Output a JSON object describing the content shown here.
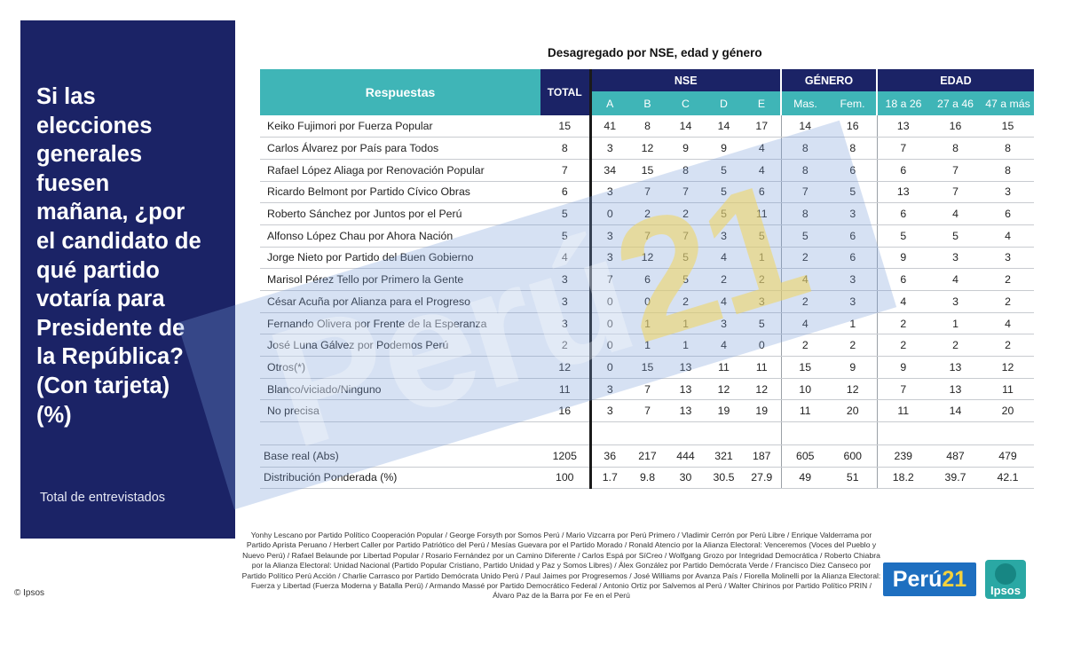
{
  "sidebar": {
    "question_lines": [
      "Si las",
      "elecciones",
      "generales",
      "fuesen",
      "mañana, ¿por",
      "el candidato de",
      "qué partido",
      "votaría para",
      "Presidente de",
      "la República?",
      "(Con tarjeta)",
      "(%)"
    ],
    "base_note": "Total de entrevistados"
  },
  "copyright": "© Ipsos",
  "table_title": "Desagregado por NSE, edad y género",
  "headers": {
    "respuestas": "Respuestas",
    "total": "TOTAL",
    "nse": "NSE",
    "genero": "GÉNERO",
    "edad": "EDAD",
    "nse_sub": [
      "A",
      "B",
      "C",
      "D",
      "E"
    ],
    "genero_sub": [
      "Mas.",
      "Fem."
    ],
    "edad_sub": [
      "18 a 26",
      "27 a 46",
      "47 a más"
    ]
  },
  "rows": [
    {
      "label": "Keiko Fujimori por Fuerza Popular",
      "values": [
        "15",
        "41",
        "8",
        "14",
        "14",
        "17",
        "14",
        "16",
        "13",
        "16",
        "15"
      ]
    },
    {
      "label": "Carlos Álvarez por País para Todos",
      "values": [
        "8",
        "3",
        "12",
        "9",
        "9",
        "4",
        "8",
        "8",
        "7",
        "8",
        "8"
      ]
    },
    {
      "label": "Rafael López Aliaga por Renovación Popular",
      "values": [
        "7",
        "34",
        "15",
        "8",
        "5",
        "4",
        "8",
        "6",
        "6",
        "7",
        "8"
      ]
    },
    {
      "label": "Ricardo Belmont por Partido Cívico Obras",
      "values": [
        "6",
        "3",
        "7",
        "7",
        "5",
        "6",
        "7",
        "5",
        "13",
        "7",
        "3"
      ]
    },
    {
      "label": "Roberto Sánchez por Juntos por el Perú",
      "values": [
        "5",
        "0",
        "2",
        "2",
        "5",
        "11",
        "8",
        "3",
        "6",
        "4",
        "6"
      ]
    },
    {
      "label": "Alfonso López Chau por Ahora Nación",
      "values": [
        "5",
        "3",
        "7",
        "7",
        "3",
        "5",
        "5",
        "6",
        "5",
        "5",
        "4"
      ]
    },
    {
      "label": "Jorge Nieto por Partido del Buen Gobierno",
      "values": [
        "4",
        "3",
        "12",
        "5",
        "4",
        "1",
        "2",
        "6",
        "9",
        "3",
        "3"
      ]
    },
    {
      "label": "Marisol Pérez Tello por Primero la Gente",
      "values": [
        "3",
        "7",
        "6",
        "5",
        "2",
        "2",
        "4",
        "3",
        "6",
        "4",
        "2"
      ]
    },
    {
      "label": "César Acuña por Alianza para el Progreso",
      "values": [
        "3",
        "0",
        "0",
        "2",
        "4",
        "3",
        "2",
        "3",
        "4",
        "3",
        "2"
      ]
    },
    {
      "label": "Fernando Olivera por Frente de la Esperanza",
      "values": [
        "3",
        "0",
        "1",
        "1",
        "3",
        "5",
        "4",
        "1",
        "2",
        "1",
        "4"
      ]
    },
    {
      "label": "José Luna Gálvez por Podemos Perú",
      "values": [
        "2",
        "0",
        "1",
        "1",
        "4",
        "0",
        "2",
        "2",
        "2",
        "2",
        "2"
      ]
    },
    {
      "label": "Otros(*)",
      "values": [
        "12",
        "0",
        "15",
        "13",
        "11",
        "11",
        "15",
        "9",
        "9",
        "13",
        "12"
      ]
    },
    {
      "label": "Blanco/viciado/Ninguno",
      "values": [
        "11",
        "3",
        "7",
        "13",
        "12",
        "12",
        "10",
        "12",
        "7",
        "13",
        "11"
      ]
    },
    {
      "label": "No precisa",
      "values": [
        "16",
        "3",
        "7",
        "13",
        "19",
        "19",
        "11",
        "20",
        "11",
        "14",
        "20"
      ]
    }
  ],
  "base_rows": [
    {
      "label": "Base real (Abs)",
      "values": [
        "1205",
        "36",
        "217",
        "444",
        "321",
        "187",
        "605",
        "600",
        "239",
        "487",
        "479"
      ]
    },
    {
      "label": "Distribución Ponderada (%)",
      "values": [
        "100",
        "1.7",
        "9.8",
        "30",
        "30.5",
        "27.9",
        "49",
        "51",
        "18.2",
        "39.7",
        "42.1"
      ]
    }
  ],
  "footnote": "Yonhy Lescano por Partido Político Cooperación Popular / George Forsyth por Somos Perú / Mario Vizcarra por Perú Primero / Vladimir Cerrón por Perú Libre / Enrique Valderrama por Partido Aprista Peruano / Herbert Caller por Partido Patriótico del Perú / Mesías Guevara por el Partido Morado / Ronald Atencio por la Alianza Electoral: Venceremos (Voces del Pueblo y Nuevo Perú) / Rafael Belaunde por Libertad Popular / Rosario Fernández por un Camino Diferente / Carlos Espá por SíCreo / Wolfgang Grozo por Integridad Democrática / Roberto Chiabra por la Alianza Electoral: Unidad Nacional (Partido Popular Cristiano, Partido Unidad y Paz y Somos Libres) / Álex González por Partido Demócrata Verde / Francisco Diez Canseco por Partido Político Perú Acción / Charlie Carrasco por Partido Demócrata Unido Perú / Paul Jaimes por Progresemos / José Williams por Avanza País / Fiorella Molinelli por la Alianza Electoral: Fuerza y Libertad (Fuerza Moderna y Batalla Perú) / Armando Massé por Partido Democrático Federal / Antonio Ortiz por Salvemos al Perú / Walter Chirinos por Partido Político PRIN / Álvaro Paz de la Barra por Fe en el Perú",
  "watermark": {
    "word": "Perú",
    "number": "21"
  },
  "logos": {
    "peru21_word": "Perú",
    "peru21_num": "21",
    "ipsos": "Ipsos"
  },
  "colors": {
    "navy": "#1b2366",
    "teal": "#3fb5b7",
    "peru21_blue": "#1e6fc0",
    "peru21_yellow": "#f5d23c"
  }
}
